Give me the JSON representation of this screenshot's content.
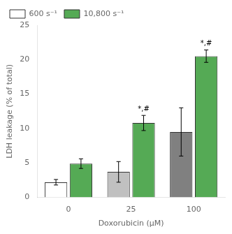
{
  "chart_data": {
    "type": "bar",
    "categories": [
      "0",
      "25",
      "100"
    ],
    "xlabel": "Doxorubicin (μM)",
    "ylabel": "LDH leakage (% of total)",
    "series": [
      {
        "name": "600 s⁻¹",
        "colors": [
          "#ffffff",
          "#c0c0c0",
          "#808080"
        ],
        "values": [
          2.2,
          3.7,
          9.5
        ],
        "errors": [
          0.4,
          1.5,
          3.5
        ]
      },
      {
        "name": "10,800 s⁻¹",
        "color": "#55aa55",
        "values": [
          4.9,
          10.8,
          20.5
        ],
        "errors": [
          0.7,
          1.1,
          0.9
        ]
      }
    ],
    "annotations": [
      {
        "text": "*,#",
        "category": "25",
        "series": "10,800 s⁻¹"
      },
      {
        "text": "*,#",
        "category": "100",
        "series": "10,800 s⁻¹"
      }
    ],
    "ylim": [
      0,
      25
    ],
    "yticks": [
      0,
      5,
      10,
      15,
      20,
      25
    ],
    "legend": "upper left",
    "grid": false
  }
}
